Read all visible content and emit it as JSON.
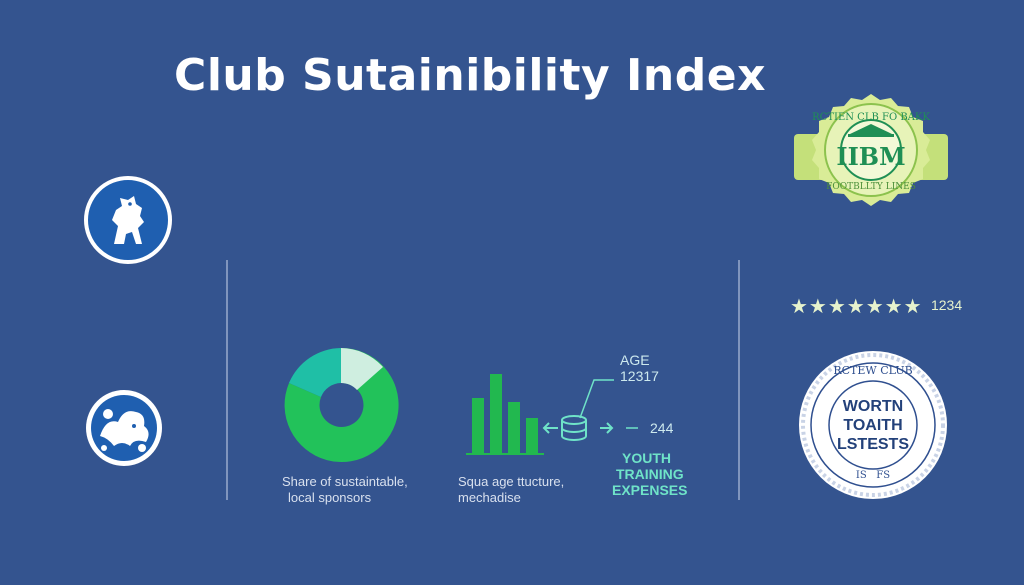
{
  "title": "Club Sutainibility Index",
  "colors": {
    "background": "#34548f",
    "crest_blue": "#1f5fb0",
    "donut_green": "#22c25a",
    "donut_teal": "#1fbfa6",
    "donut_pale": "#cfeee0",
    "bar_green": "#22b84f",
    "mint": "#6fe3c8",
    "badge_green": "#d4e98a"
  },
  "icons": [
    "lion-crest-icon",
    "dragon-crest-icon",
    "database-icon",
    "arrow-left-icon",
    "arrow-right-icon",
    "star-icon"
  ],
  "donut": {
    "caption_line1": "Share of sustaintable,",
    "caption_line2": "local sponsors"
  },
  "bars": {
    "caption_line1": "Squa age ttucture,",
    "caption_line2": "mechadise"
  },
  "age_callout": {
    "label": "AGE",
    "value": "12317"
  },
  "arrow_value": "244",
  "youth": {
    "line1": "YOUTH",
    "line2": "TRAINING",
    "line3": "EXPENSES"
  },
  "rating": {
    "stars": "★★★★★★★",
    "value": "1234"
  },
  "green_badge": {
    "top_text": "RCTIEN CLB FO BAKK",
    "center_text": "IIBM",
    "bottom_text": "FOOTBLLTY LINES"
  },
  "white_badge": {
    "top_text": "RCTEW CLUB",
    "line1": "WORTN",
    "line2": "TOAITH",
    "line3": "LSTESTS",
    "bottom_text": "IS   FS"
  }
}
